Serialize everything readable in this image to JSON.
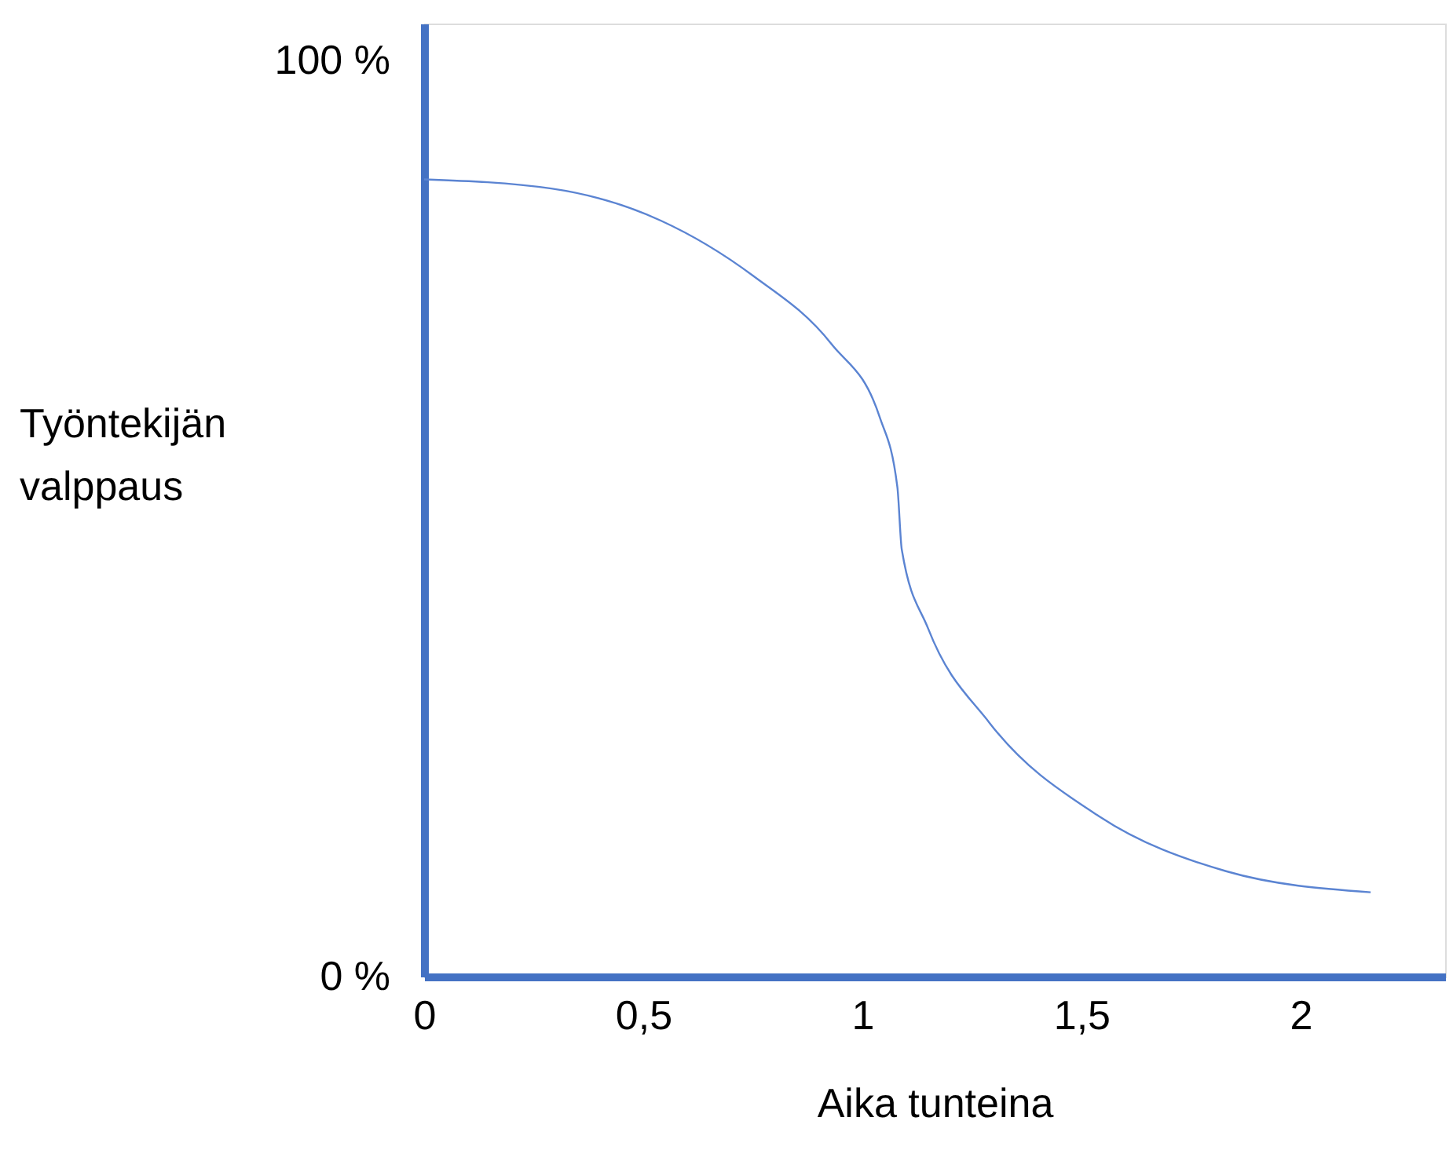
{
  "chart_data": {
    "type": "line",
    "xlabel": "Aika tunteina",
    "ylabel": "Työntekijän\nvalppaus",
    "x": [
      0,
      0.29,
      0.54,
      0.75,
      0.93,
      1.04,
      1.08,
      1.09,
      1.15,
      1.29,
      1.54,
      1.83,
      2.16
    ],
    "series": [
      {
        "color": "#5b84d2",
        "values": [
          87,
          86,
          82.5,
          76.5,
          69,
          61,
          53.4,
          46.6,
          38,
          27.7,
          17.5,
          11.5,
          9.2
        ]
      }
    ],
    "xlim": [
      0,
      2.33
    ],
    "ylim": [
      0,
      104
    ],
    "xticks": [
      {
        "value": 0,
        "label": "0"
      },
      {
        "value": 0.5,
        "label": "0,5"
      },
      {
        "value": 1,
        "label": "1"
      },
      {
        "value": 1.5,
        "label": "1,5"
      },
      {
        "value": 2,
        "label": "2"
      }
    ],
    "yticks": [
      {
        "value": 0,
        "label": "0 %"
      },
      {
        "value": 100,
        "label": "100 %"
      }
    ],
    "grid": false,
    "marker": "none",
    "line_style": "solid"
  }
}
